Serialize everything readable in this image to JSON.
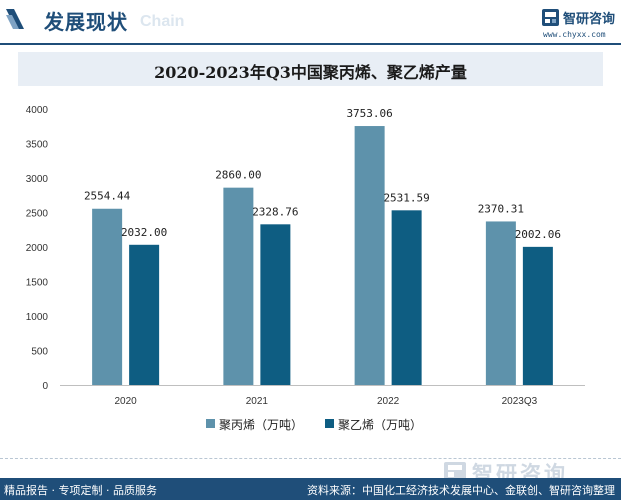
{
  "header": {
    "section_title": "发展现状",
    "watermark_word": "Chain",
    "brand_name": "智研咨询",
    "brand_url": "www.chyxx.com"
  },
  "colors": {
    "series_1": "#5e92ab",
    "series_2": "#0e5d82",
    "accent": "#1f4e79"
  },
  "chart_data": {
    "type": "bar",
    "title": "2020-2023年Q3中国聚丙烯、聚乙烯产量",
    "categories": [
      "2020",
      "2021",
      "2022",
      "2023Q3"
    ],
    "series": [
      {
        "name": "聚丙烯（万吨）",
        "values": [
          2554.44,
          2860.0,
          3753.06,
          2370.31
        ],
        "labels": [
          "2554.44",
          "2860.00",
          "3753.06",
          "2370.31"
        ]
      },
      {
        "name": "聚乙烯（万吨）",
        "values": [
          2032.0,
          2328.76,
          2531.59,
          2002.06
        ],
        "labels": [
          "2032.00",
          "2328.76",
          "2531.59",
          "2002.06"
        ]
      }
    ],
    "yticks": [
      0,
      500,
      1000,
      1500,
      2000,
      2500,
      3000,
      3500,
      4000
    ],
    "ylim": [
      0,
      4000
    ],
    "xlabel": "",
    "ylabel": "",
    "grid": false,
    "legend": "bottom"
  },
  "footer": {
    "watermark_text": "智研咨询",
    "services": "精品报告 · 专项定制 · 品质服务",
    "source": "资料来源：中国化工经济技术发展中心、金联创、智研咨询整理"
  }
}
